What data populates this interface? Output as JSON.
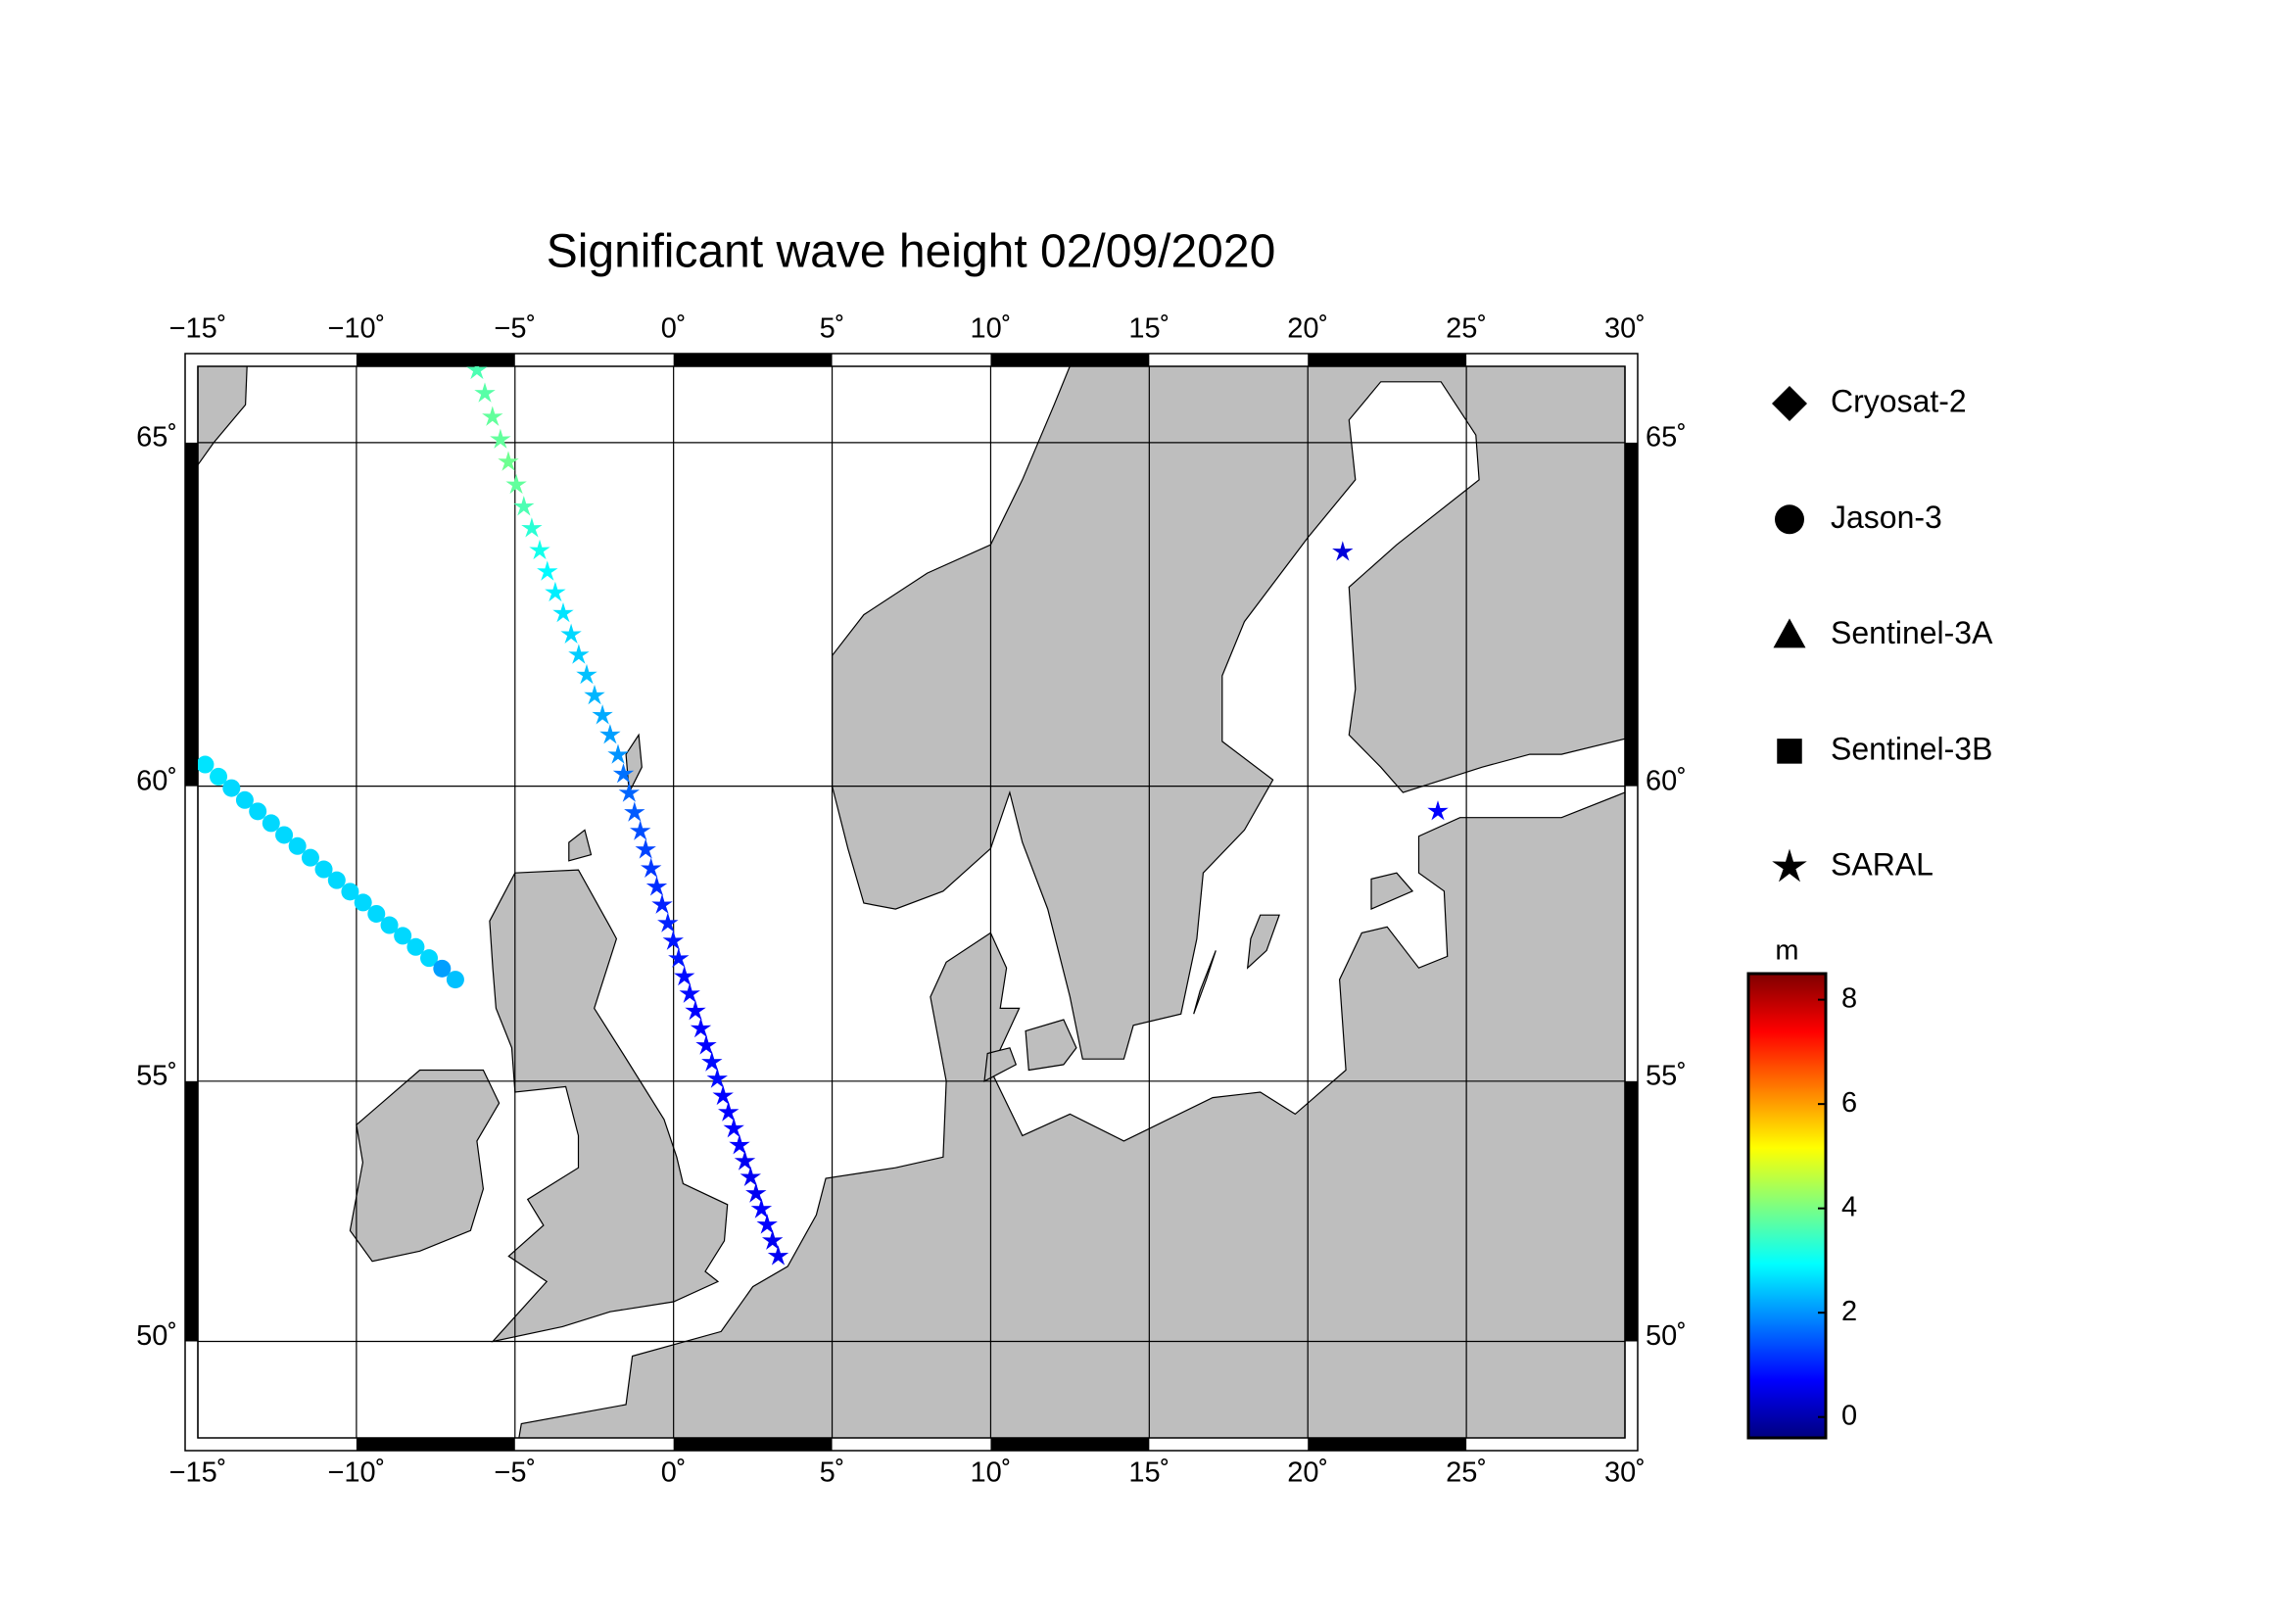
{
  "chart_data": {
    "type": "map",
    "title": "Significant wave height 02/09/2020",
    "projection": "mercator",
    "xlim": [
      -15,
      30
    ],
    "ylim": [
      48,
      66
    ],
    "xticks": [
      {
        "value": -15,
        "label": "−15˚"
      },
      {
        "value": -10,
        "label": "−10˚"
      },
      {
        "value": -5,
        "label": "−5˚"
      },
      {
        "value": 0,
        "label": "0˚"
      },
      {
        "value": 5,
        "label": "5˚"
      },
      {
        "value": 10,
        "label": "10˚"
      },
      {
        "value": 15,
        "label": "15˚"
      },
      {
        "value": 20,
        "label": "20˚"
      },
      {
        "value": 25,
        "label": "25˚"
      },
      {
        "value": 30,
        "label": "30˚"
      }
    ],
    "yticks": [
      {
        "value": 50,
        "label": "50˚"
      },
      {
        "value": 55,
        "label": "55˚"
      },
      {
        "value": 60,
        "label": "60˚"
      },
      {
        "value": 65,
        "label": "65˚"
      }
    ],
    "grid": true,
    "land_color": "#bebebe",
    "colorbar_label": "m",
    "clim": [
      -0.4,
      8.5
    ],
    "cticks": [
      0,
      2,
      4,
      6,
      8
    ],
    "colormap": [
      "#00007f",
      "#0000ff",
      "#007fff",
      "#00ffff",
      "#7fff7f",
      "#ffff00",
      "#ff7f00",
      "#ff0000",
      "#7f0000"
    ],
    "series": [
      {
        "name": "Cryosat-2",
        "marker": "diamond",
        "lon": [],
        "lat": [],
        "values": []
      },
      {
        "name": "Jason-3",
        "marker": "circle",
        "lon": [
          -14.77,
          -14.35,
          -13.94,
          -13.52,
          -13.11,
          -12.69,
          -12.28,
          -11.86,
          -11.45,
          -11.03,
          -10.62,
          -10.2,
          -9.79,
          -9.37,
          -8.96,
          -8.54,
          -8.13,
          -7.71,
          -7.3,
          -6.88
        ],
        "lat": [
          60.34,
          60.15,
          59.97,
          59.78,
          59.6,
          59.41,
          59.22,
          59.04,
          58.85,
          58.66,
          58.48,
          58.29,
          58.11,
          57.92,
          57.73,
          57.55,
          57.36,
          57.17,
          56.99,
          56.8
        ],
        "values": [
          2.7,
          2.7,
          2.6,
          2.6,
          2.6,
          2.6,
          2.6,
          2.6,
          2.6,
          2.6,
          2.6,
          2.6,
          2.6,
          2.6,
          2.6,
          2.6,
          2.6,
          2.6,
          2.1,
          2.4
        ]
      },
      {
        "name": "Sentinel-3A",
        "marker": "triangle",
        "lon": [],
        "lat": [],
        "values": []
      },
      {
        "name": "Sentinel-3B",
        "marker": "square",
        "lon": [],
        "lat": [],
        "values": []
      },
      {
        "name": "SARAL",
        "marker": "star",
        "lon": [
          -6.2,
          -5.95,
          -5.71,
          -5.46,
          -5.21,
          -4.96,
          -4.72,
          -4.47,
          -4.22,
          -3.98,
          -3.73,
          -3.48,
          -3.23,
          -2.99,
          -2.74,
          -2.49,
          -2.24,
          -2.0,
          -1.75,
          -1.58,
          -1.4,
          -1.23,
          -1.05,
          -0.88,
          -0.71,
          -0.53,
          -0.36,
          -0.18,
          -0.01,
          0.16,
          0.34,
          0.51,
          0.69,
          0.86,
          1.03,
          1.21,
          1.38,
          1.56,
          1.73,
          1.9,
          2.08,
          2.25,
          2.43,
          2.6,
          2.77,
          2.95,
          3.12,
          3.3,
          21.1,
          24.1
        ],
        "lat": [
          65.95,
          65.65,
          65.34,
          65.04,
          64.74,
          64.43,
          64.13,
          63.83,
          63.52,
          63.22,
          62.92,
          62.62,
          62.31,
          62.01,
          61.71,
          61.4,
          61.1,
          60.8,
          60.49,
          60.19,
          59.89,
          59.58,
          59.28,
          58.98,
          58.67,
          58.37,
          58.07,
          57.76,
          57.46,
          57.16,
          56.85,
          56.55,
          56.25,
          55.94,
          55.64,
          55.34,
          55.04,
          54.73,
          54.43,
          54.13,
          53.82,
          53.52,
          53.22,
          52.91,
          52.61,
          52.31,
          52.0,
          51.7,
          63.5,
          59.6
        ],
        "values": [
          3.6,
          3.7,
          3.8,
          3.8,
          3.9,
          3.8,
          3.6,
          3.3,
          3.1,
          2.9,
          2.8,
          2.7,
          2.6,
          2.5,
          2.4,
          2.3,
          2.2,
          2.1,
          2.0,
          1.7,
          1.6,
          1.5,
          1.4,
          1.3,
          1.2,
          1.1,
          1.0,
          1.0,
          0.9,
          0.9,
          0.8,
          0.8,
          0.7,
          0.7,
          0.7,
          0.8,
          0.8,
          0.7,
          0.7,
          0.7,
          0.7,
          0.6,
          0.6,
          0.6,
          0.7,
          0.7,
          0.6,
          0.6,
          0.4,
          0.7
        ]
      }
    ]
  }
}
